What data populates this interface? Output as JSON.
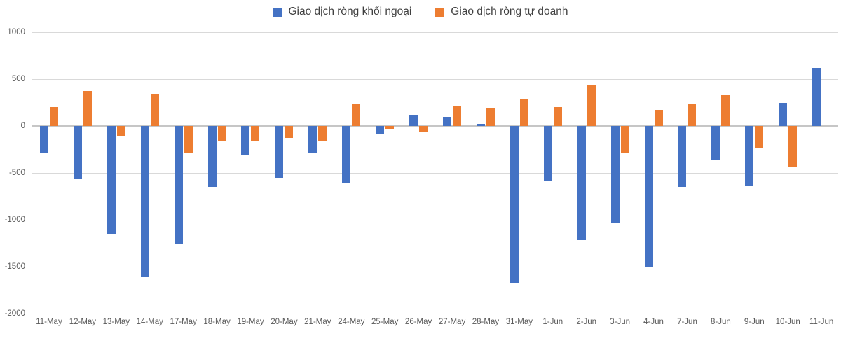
{
  "chart_data": {
    "type": "bar",
    "title": "",
    "xlabel": "",
    "ylabel": "",
    "categories": [
      "11-May",
      "12-May",
      "13-May",
      "14-May",
      "17-May",
      "18-May",
      "19-May",
      "20-May",
      "21-May",
      "24-May",
      "25-May",
      "26-May",
      "27-May",
      "28-May",
      "31-May",
      "1-Jun",
      "2-Jun",
      "3-Jun",
      "4-Jun",
      "7-Jun",
      "8-Jun",
      "9-Jun",
      "10-Jun",
      "11-Jun"
    ],
    "series": [
      {
        "name": "Giao dịch ròng khối ngoại",
        "color": "#4472C4",
        "values": [
          -290,
          -565,
          -1160,
          -1610,
          -1255,
          -650,
          -305,
          -560,
          -290,
          -615,
          -90,
          110,
          100,
          20,
          -1675,
          -590,
          -1215,
          -1040,
          -1510,
          -650,
          -360,
          -645,
          250,
          620
        ]
      },
      {
        "name": "Giao dịch ròng tự doanh",
        "color": "#ED7D31",
        "values": [
          200,
          375,
          -115,
          345,
          -280,
          -165,
          -160,
          -130,
          -160,
          230,
          -40,
          -70,
          210,
          195,
          285,
          200,
          435,
          -290,
          175,
          235,
          330,
          -240,
          -430,
          0
        ]
      }
    ],
    "ylim": [
      -2000,
      1000
    ],
    "yticks": [
      1000,
      500,
      0,
      -500,
      -1000,
      -1500,
      -2000
    ],
    "grid": true,
    "legend_position": "top",
    "gridline_color": "#D9D9D9",
    "tick_label_color": "#595959",
    "legend_text_color": "#404040",
    "background_color": "#FFFFFF"
  }
}
